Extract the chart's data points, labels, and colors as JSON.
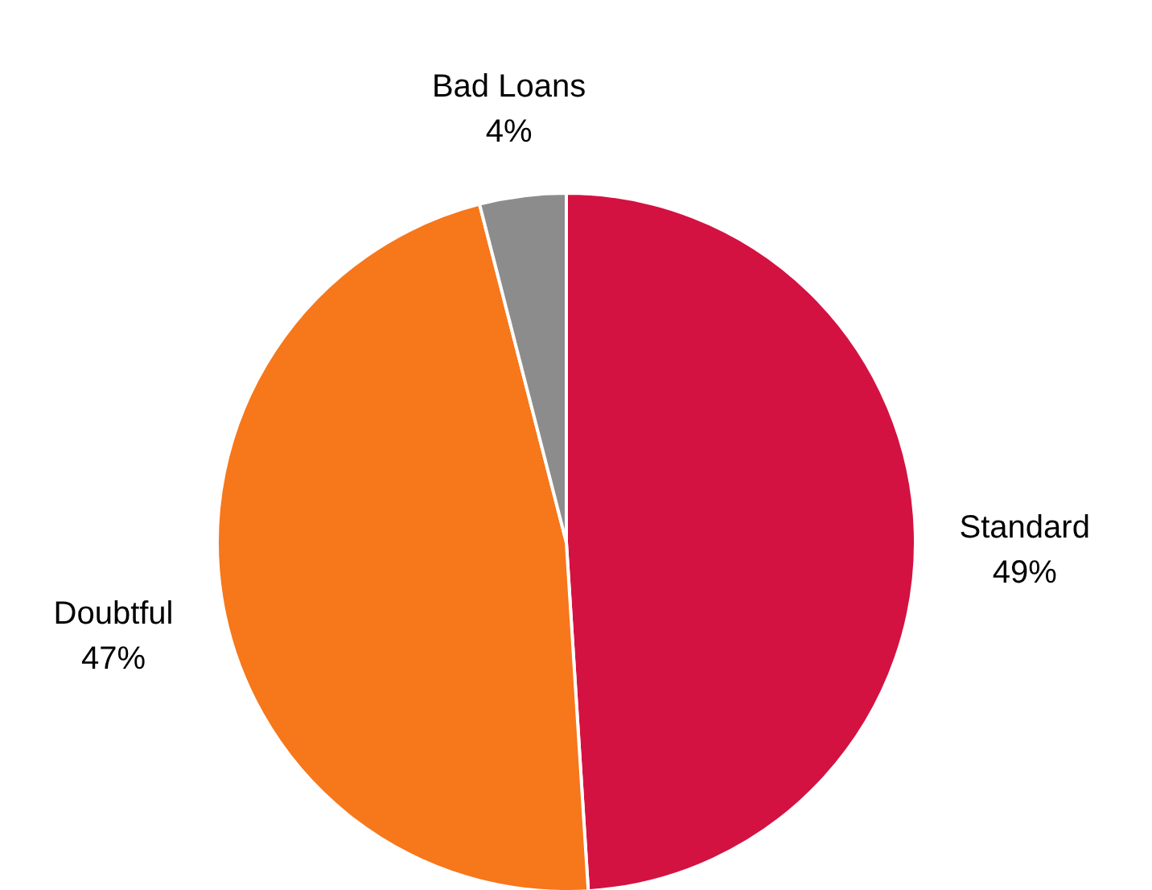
{
  "chart_data": {
    "type": "pie",
    "categories": [
      "Standard",
      "Doubtful",
      "Bad Loans"
    ],
    "values": [
      49,
      47,
      4
    ],
    "colors": [
      "#d31241",
      "#f7771b",
      "#8c8c8c"
    ],
    "value_labels": [
      "49%",
      "47%",
      "4%"
    ]
  }
}
